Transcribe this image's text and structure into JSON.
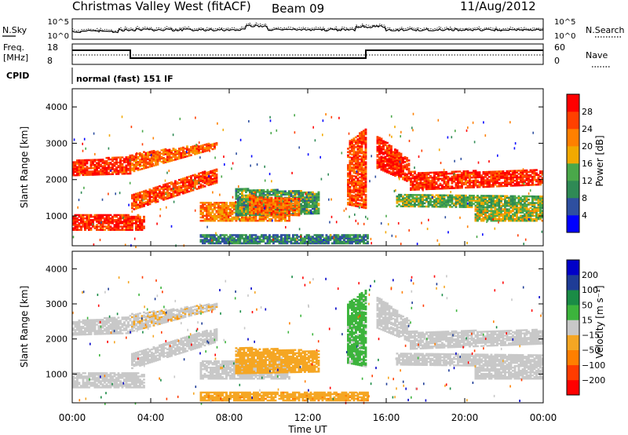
{
  "header": {
    "station": "Christmas Valley West (fitACF)",
    "beam": "Beam 09",
    "date": "11/Aug/2012"
  },
  "noise_panel": {
    "left_label": "N.Sky",
    "right_label": "N.Search",
    "tick_high": "10^5",
    "tick_low": "10^0"
  },
  "freq_panel": {
    "left_label_1": "Freq.",
    "left_label_2": "[MHz]",
    "tick_high": "18",
    "tick_low": "8",
    "right_label": "Nave",
    "right_tick_high": "60",
    "right_tick_low": "0"
  },
  "cpid": {
    "label": "CPID",
    "value": "normal (fast) 151 IF"
  },
  "x_axis_title": "Time UT",
  "colors": {
    "power_scale": [
      "#0000ff",
      "#2e4fa0",
      "#2f8a55",
      "#4aa84a",
      "#f2a900",
      "#ff8000",
      "#ff4000",
      "#ff0000"
    ],
    "velocity_scale": [
      "#ff0000",
      "#ff3c00",
      "#ff7f00",
      "#f5a623",
      "#c8c8c8",
      "#3cb43c",
      "#1a8c46",
      "#1e3c96",
      "#0000c8"
    ]
  },
  "chart_data": [
    {
      "type": "heatmap",
      "name": "Power",
      "xlabel": "Time UT",
      "ylabel": "Slant Range [km]",
      "xlim": [
        0,
        24
      ],
      "ylim": [
        180,
        4500
      ],
      "x_ticks": [
        "00:00",
        "04:00",
        "08:00",
        "12:00",
        "16:00",
        "20:00",
        "00:00"
      ],
      "y_ticks": [
        1000,
        2000,
        3000,
        4000
      ],
      "colorbar": {
        "label": "Power [dB]",
        "ticks": [
          "4",
          "8",
          "12",
          "16",
          "20",
          "24",
          "28"
        ],
        "range": [
          0,
          32
        ]
      },
      "regions": [
        {
          "t": [
            0.0,
            3.0
          ],
          "r0": [
            2100,
            2150
          ],
          "r1": [
            2500,
            2650
          ],
          "value": 28
        },
        {
          "t": [
            0.0,
            3.7
          ],
          "r0": [
            600,
            600
          ],
          "r1": [
            1050,
            1000
          ],
          "value": 28
        },
        {
          "t": [
            3.0,
            7.3
          ],
          "r0": [
            2200,
            2850
          ],
          "r1": [
            2700,
            3000
          ],
          "value": 24
        },
        {
          "t": [
            3.0,
            7.3
          ],
          "r0": [
            1150,
            1900
          ],
          "r1": [
            1600,
            2300
          ],
          "value": 26
        },
        {
          "t": [
            6.5,
            11.0
          ],
          "r0": [
            850,
            850
          ],
          "r1": [
            1350,
            1450
          ],
          "value": 22
        },
        {
          "t": [
            8.3,
            12.5
          ],
          "r0": [
            1000,
            1050
          ],
          "r1": [
            1750,
            1650
          ],
          "value": 12
        },
        {
          "t": [
            9.0,
            11.5
          ],
          "r0": [
            1050,
            1000
          ],
          "r1": [
            1550,
            1450
          ],
          "value": 24
        },
        {
          "t": [
            6.5,
            15.0
          ],
          "r0": [
            230,
            230
          ],
          "r1": [
            480,
            480
          ],
          "value": 9
        },
        {
          "t": [
            14.0,
            14.9
          ],
          "r0": [
            1300,
            1200
          ],
          "r1": [
            3000,
            3400
          ],
          "value": 26
        },
        {
          "t": [
            15.5,
            17.2
          ],
          "r0": [
            2300,
            1900
          ],
          "r1": [
            3200,
            2500
          ],
          "value": 28
        },
        {
          "t": [
            17.2,
            24.0
          ],
          "r0": [
            1700,
            1850
          ],
          "r1": [
            2200,
            2250
          ],
          "value": 28
        },
        {
          "t": [
            16.5,
            24.0
          ],
          "r0": [
            1250,
            1200
          ],
          "r1": [
            1600,
            1550
          ],
          "value": 14
        },
        {
          "t": [
            20.5,
            24.0
          ],
          "r0": [
            850,
            850
          ],
          "r1": [
            1200,
            1200
          ],
          "value": 16
        }
      ]
    },
    {
      "type": "heatmap",
      "name": "Velocity",
      "xlabel": "Time UT",
      "ylabel": "Slant Range [km]",
      "xlim": [
        0,
        24
      ],
      "ylim": [
        180,
        4500
      ],
      "x_ticks": [
        "00:00",
        "04:00",
        "08:00",
        "12:00",
        "16:00",
        "20:00",
        "00:00"
      ],
      "y_ticks": [
        1000,
        2000,
        3000,
        4000
      ],
      "colorbar": {
        "label": "Velocity [m s⁻¹]",
        "ticks": [
          "200",
          "100",
          "50",
          "15",
          "−15",
          "−50",
          "−100",
          "−200"
        ],
        "range": [
          -250,
          250
        ]
      },
      "regions": [
        {
          "t": [
            0.0,
            3.0
          ],
          "r0": [
            2100,
            2150
          ],
          "r1": [
            2500,
            2650
          ],
          "value": 0
        },
        {
          "t": [
            0.0,
            3.7
          ],
          "r0": [
            600,
            600
          ],
          "r1": [
            1050,
            1000
          ],
          "value": 0
        },
        {
          "t": [
            3.0,
            7.3
          ],
          "r0": [
            2200,
            2850
          ],
          "r1": [
            2700,
            3000
          ],
          "value": -20
        },
        {
          "t": [
            3.0,
            7.3
          ],
          "r0": [
            1150,
            1900
          ],
          "r1": [
            1600,
            2300
          ],
          "value": 0
        },
        {
          "t": [
            6.5,
            11.0
          ],
          "r0": [
            850,
            850
          ],
          "r1": [
            1350,
            1450
          ],
          "value": 0
        },
        {
          "t": [
            8.3,
            12.5
          ],
          "r0": [
            1000,
            1050
          ],
          "r1": [
            1750,
            1650
          ],
          "value": -60
        },
        {
          "t": [
            6.5,
            15.0
          ],
          "r0": [
            230,
            230
          ],
          "r1": [
            480,
            480
          ],
          "value": -70
        },
        {
          "t": [
            14.0,
            14.9
          ],
          "r0": [
            1300,
            1200
          ],
          "r1": [
            3000,
            3400
          ],
          "value": 40
        },
        {
          "t": [
            15.5,
            17.2
          ],
          "r0": [
            2300,
            1900
          ],
          "r1": [
            3200,
            2500
          ],
          "value": 0
        },
        {
          "t": [
            17.2,
            24.0
          ],
          "r0": [
            1700,
            1850
          ],
          "r1": [
            2200,
            2250
          ],
          "value": 0
        },
        {
          "t": [
            16.5,
            24.0
          ],
          "r0": [
            1250,
            1200
          ],
          "r1": [
            1600,
            1550
          ],
          "value": 0
        },
        {
          "t": [
            20.5,
            24.0
          ],
          "r0": [
            850,
            850
          ],
          "r1": [
            1200,
            1200
          ],
          "value": 0
        }
      ]
    }
  ]
}
